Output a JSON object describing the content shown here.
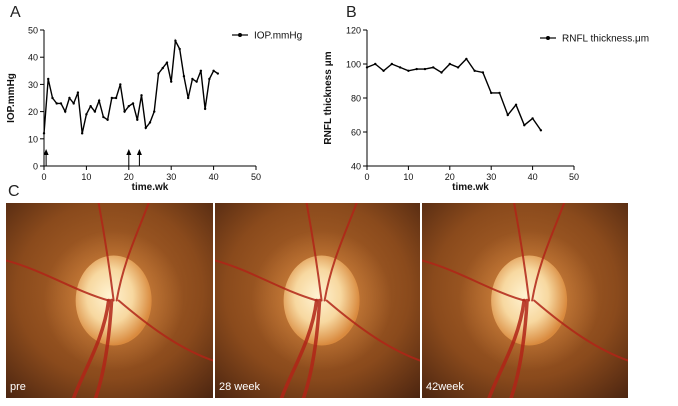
{
  "panels": {
    "a": "A",
    "b": "B",
    "c": "C"
  },
  "chart_data": [
    {
      "type": "line",
      "panel": "A",
      "title": "",
      "xlabel": "time.wk",
      "ylabel": "IOP.mmHg",
      "xlim": [
        0,
        50
      ],
      "ylim": [
        0,
        50
      ],
      "xticks": [
        0,
        10,
        20,
        30,
        40,
        50
      ],
      "yticks": [
        0,
        10,
        20,
        30,
        40,
        50
      ],
      "legend_placement": "top-right",
      "grid": false,
      "series": [
        {
          "name": "IOP.mmHg",
          "x": [
            0,
            1,
            2,
            3,
            4,
            5,
            6,
            7,
            8,
            9,
            10,
            11,
            12,
            13,
            14,
            15,
            16,
            17,
            18,
            19,
            20,
            21,
            22,
            23,
            24,
            25,
            26,
            27,
            28,
            29,
            30,
            31,
            32,
            33,
            34,
            35,
            36,
            37,
            38,
            39,
            40,
            41
          ],
          "values": [
            12,
            32,
            25,
            23,
            23,
            20,
            25,
            23,
            27,
            12,
            19,
            22,
            20,
            24,
            18,
            17,
            25,
            25,
            30,
            20,
            22,
            23,
            17,
            26,
            14,
            16,
            20,
            34,
            36,
            38,
            31,
            46,
            43,
            33,
            25,
            32,
            31,
            35,
            21,
            32,
            35,
            34
          ]
        }
      ],
      "annotations": [
        {
          "type": "arrow",
          "x": 0.5
        },
        {
          "type": "arrow",
          "x": 20
        },
        {
          "type": "arrow",
          "x": 22.5
        }
      ]
    },
    {
      "type": "line",
      "panel": "B",
      "title": "",
      "xlabel": "time.wk",
      "ylabel": "RNFL thickness μm",
      "xlim": [
        0,
        50
      ],
      "ylim": [
        40,
        120
      ],
      "xticks": [
        0,
        10,
        20,
        30,
        40,
        50
      ],
      "yticks": [
        40,
        60,
        80,
        100,
        120
      ],
      "legend_placement": "top-right",
      "grid": false,
      "series": [
        {
          "name": "RNFL thickness.μm",
          "x": [
            0,
            2,
            4,
            6,
            8,
            10,
            12,
            14,
            16,
            18,
            20,
            22,
            24,
            26,
            28,
            30,
            32,
            34,
            36,
            38,
            40,
            42
          ],
          "values": [
            98,
            100,
            96,
            100,
            98,
            96,
            97,
            97,
            98,
            95,
            100,
            98,
            103,
            96,
            95,
            83,
            83,
            70,
            76,
            64,
            68,
            61
          ]
        }
      ]
    }
  ],
  "photos": [
    {
      "label": "pre"
    },
    {
      "label": "28 week"
    },
    {
      "label": "42week"
    }
  ],
  "colors": {
    "line": "#000000",
    "fundus_bg": "#8a4a1c",
    "disc": "#f7d8a0",
    "vessel": "#b02418"
  }
}
